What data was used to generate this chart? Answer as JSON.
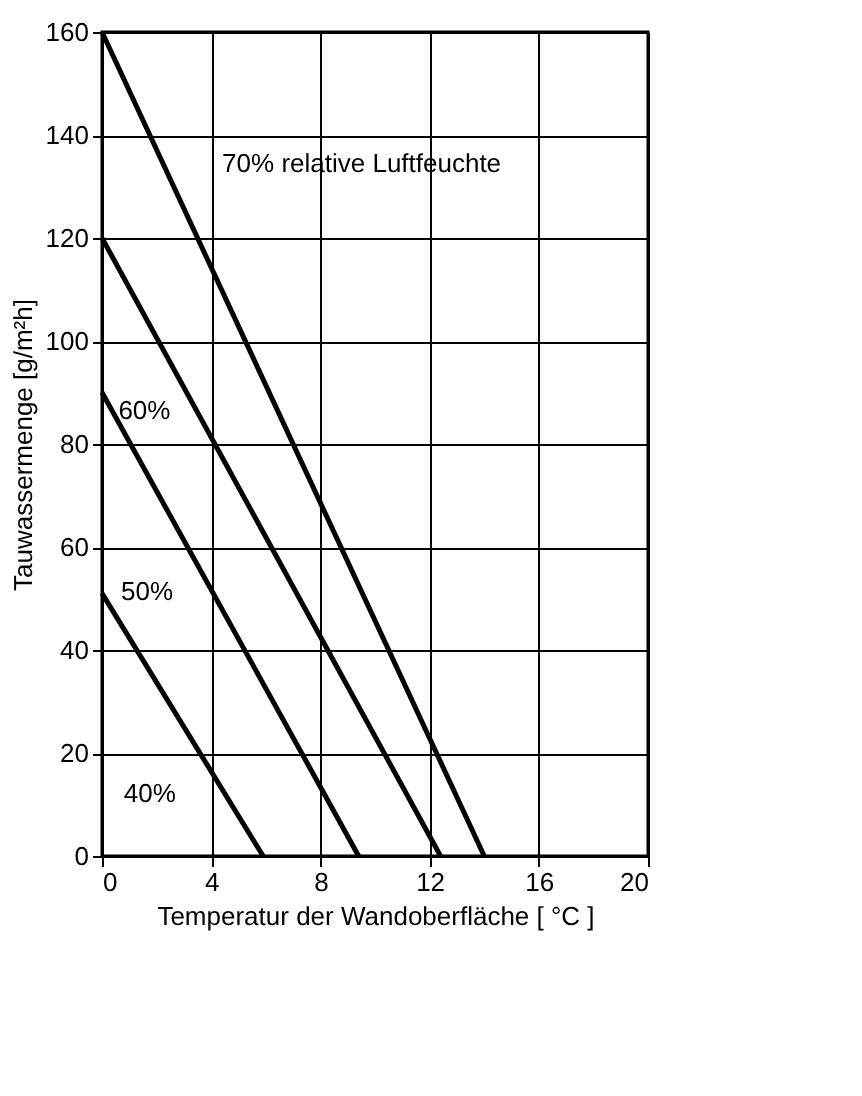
{
  "chart_data": {
    "type": "line",
    "xlabel": "Temperatur der Wandoberfläche [ °C ]",
    "ylabel": "Tauwassermenge [g/m²h]",
    "series": [
      {
        "color": "#000000",
        "x": [
          0,
          14
        ],
        "values": [
          160,
          0
        ]
      },
      {
        "color": "#000000",
        "x": [
          0,
          12.4
        ],
        "values": [
          120,
          0
        ]
      },
      {
        "color": "#000000",
        "x": [
          0,
          9.4
        ],
        "values": [
          90,
          0
        ]
      },
      {
        "color": "#000000",
        "x": [
          0,
          5.9
        ],
        "values": [
          51,
          0
        ]
      }
    ],
    "annotations": [
      "70%  relative Luftfeuchte",
      "60%",
      "50%",
      "40%"
    ],
    "xlim": [
      0,
      20
    ],
    "xticks": [
      0,
      4,
      8,
      12,
      16,
      20
    ],
    "ylim": [
      0,
      160
    ],
    "yticks": [
      0,
      20,
      40,
      60,
      80,
      100,
      120,
      140,
      160
    ],
    "grid": true,
    "legend": false,
    "marker": "none",
    "line_style": "solid"
  }
}
